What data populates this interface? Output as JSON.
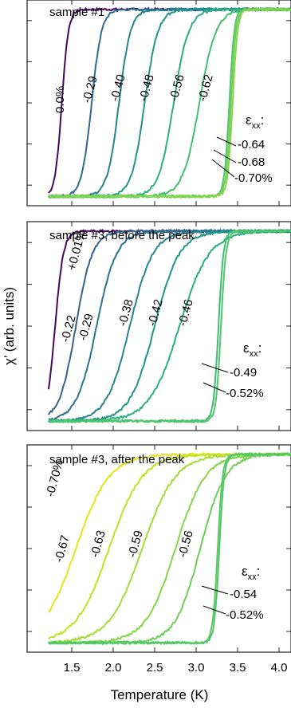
{
  "chart_data": {
    "type": "line",
    "xlabel": "Temperature (K)",
    "ylabel": "χ’ (arb. units)",
    "xlim": [
      1.2,
      4.2
    ],
    "xticks": [
      1.5,
      2.0,
      2.5,
      3.0,
      3.5,
      4.0
    ],
    "xtick_labels": [
      "1.5",
      "2.0",
      "2.5",
      "3.0",
      "3.5",
      "4.0"
    ],
    "strain_symbol": "ε",
    "strain_subscript": "xx",
    "strain_suffix": ":",
    "panels": [
      {
        "title": "sample #1",
        "ylim": [
          -0.05,
          1.05
        ],
        "series": [
          {
            "name": "0.0%",
            "color": "#46085c",
            "tc": 1.38,
            "width": 0.04,
            "label": "0.0%"
          },
          {
            "name": "-0.29",
            "color": "#2e6b8e",
            "tc": 1.74,
            "width": 0.06,
            "label": "-0.29"
          },
          {
            "name": "-0.40",
            "color": "#24848d",
            "tc": 2.07,
            "width": 0.07,
            "label": "-0.40"
          },
          {
            "name": "-0.48",
            "color": "#1f958b",
            "tc": 2.38,
            "width": 0.08,
            "label": "-0.48"
          },
          {
            "name": "-0.56",
            "color": "#2ab07e",
            "tc": 2.73,
            "width": 0.09,
            "label": "-0.56"
          },
          {
            "name": "-0.62",
            "color": "#43bf70",
            "tc": 3.04,
            "width": 0.1,
            "label": "-0.62"
          },
          {
            "name": "-0.64",
            "color": "#52c569",
            "tc": 3.4,
            "width": 0.03,
            "label": "-0.64"
          },
          {
            "name": "-0.68",
            "color": "#6cce59",
            "tc": 3.42,
            "width": 0.03,
            "label": "-0.68"
          },
          {
            "name": "-0.70%",
            "color": "#86d549",
            "tc": 3.44,
            "width": 0.03,
            "label": "-0.70%"
          }
        ]
      },
      {
        "title": "sample #3, before the peak",
        "ylim": [
          -0.05,
          1.05
        ],
        "series": [
          {
            "name": "+0.01%",
            "color": "#46085c",
            "tc": 1.3,
            "width": 0.05,
            "label": "+0.01%"
          },
          {
            "name": "-0.22",
            "color": "#33638d",
            "tc": 1.55,
            "width": 0.1,
            "label": "-0.22"
          },
          {
            "name": "-0.29",
            "color": "#2c728e",
            "tc": 1.8,
            "width": 0.12,
            "label": "-0.29"
          },
          {
            "name": "-0.38",
            "color": "#25848e",
            "tc": 2.2,
            "width": 0.14,
            "label": "-0.38"
          },
          {
            "name": "-0.42",
            "color": "#1f958b",
            "tc": 2.5,
            "width": 0.15,
            "label": "-0.42"
          },
          {
            "name": "-0.46",
            "color": "#29af7f",
            "tc": 2.8,
            "width": 0.18,
            "label": "-0.46"
          },
          {
            "name": "-0.49",
            "color": "#3dbc74",
            "tc": 3.27,
            "width": 0.03,
            "label": "-0.49"
          },
          {
            "name": "-0.52%",
            "color": "#52c569",
            "tc": 3.3,
            "width": 0.03,
            "label": "-0.52%"
          }
        ]
      },
      {
        "title": "sample #3, after the peak",
        "ylim": [
          -0.05,
          1.05
        ],
        "series": [
          {
            "name": "-0.70%",
            "color": "#e5e419",
            "tc": 1.55,
            "width": 0.2,
            "label": "-0.70%"
          },
          {
            "name": "-0.67",
            "color": "#c2df23",
            "tc": 1.95,
            "width": 0.2,
            "label": "-0.67"
          },
          {
            "name": "-0.63",
            "color": "#a5db36",
            "tc": 2.35,
            "width": 0.2,
            "label": "-0.63"
          },
          {
            "name": "-0.59",
            "color": "#86d549",
            "tc": 2.75,
            "width": 0.18,
            "label": "-0.59"
          },
          {
            "name": "-0.56",
            "color": "#6ccd5a",
            "tc": 3.05,
            "width": 0.15,
            "label": "-0.56"
          },
          {
            "name": "-0.54",
            "color": "#5ec962",
            "tc": 3.26,
            "width": 0.03,
            "label": "-0.54"
          },
          {
            "name": "-0.52%",
            "color": "#52c569",
            "tc": 3.28,
            "width": 0.03,
            "label": "-0.52%"
          }
        ]
      }
    ]
  }
}
